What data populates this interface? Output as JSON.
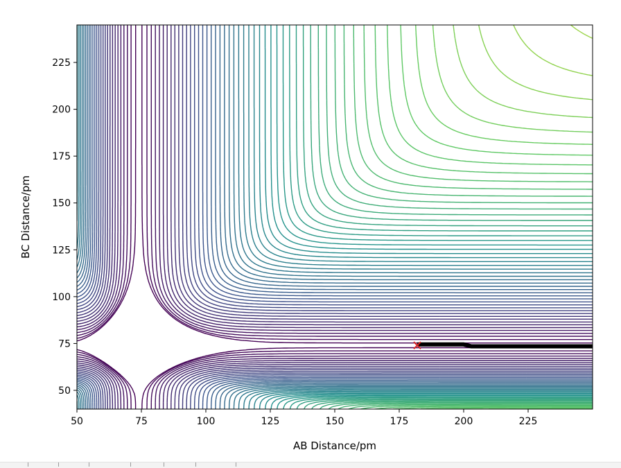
{
  "chart_data": {
    "type": "contour",
    "title": "",
    "xlabel": "AB Distance/pm",
    "ylabel": "BC Distance/pm",
    "xlim": [
      50,
      250
    ],
    "ylim": [
      40,
      245
    ],
    "grid": false,
    "colormap": "viridis",
    "x_ticks": [
      50,
      75,
      100,
      125,
      150,
      175,
      200,
      225
    ],
    "y_ticks": [
      50,
      75,
      100,
      125,
      150,
      175,
      200,
      225
    ],
    "x_tick_labels": [
      "50",
      "75",
      "100",
      "125",
      "150",
      "175",
      "200",
      "225"
    ],
    "y_tick_labels": [
      "50",
      "75",
      "100",
      "125",
      "150",
      "175",
      "200",
      "225"
    ],
    "contour_levels": 60,
    "trajectory": {
      "color": "#000000",
      "points": [
        [
          182,
          74.5
        ],
        [
          200,
          74.5
        ],
        [
          203,
          73.5
        ],
        [
          250,
          73.5
        ]
      ]
    },
    "start_marker": {
      "symbol": "x",
      "color": "#d62728",
      "x": 182,
      "y": 74
    }
  },
  "colors": {
    "colormap_stops": [
      "#440154",
      "#3b528b",
      "#21918c",
      "#5ec962",
      "#fde725"
    ]
  }
}
